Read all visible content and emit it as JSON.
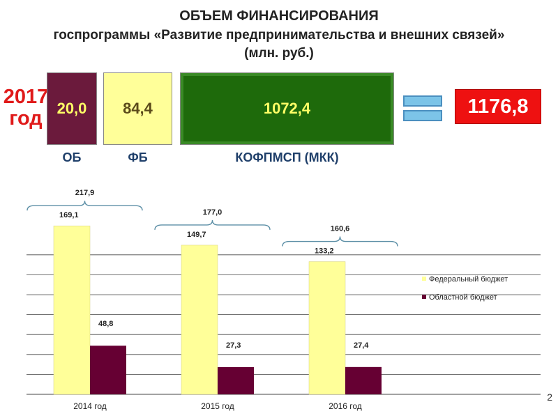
{
  "title": {
    "line1": "ОБЪЕМ ФИНАНСИРОВАНИЯ",
    "line2": "госпрограммы «Развитие предпринимательства и внешних связей»",
    "line3": "(млн. руб.)"
  },
  "summary": {
    "year_line1": "2017",
    "year_line2": "год",
    "ob": {
      "value": "20,0",
      "label": "ОБ"
    },
    "fb": {
      "value": "84,4",
      "label": "ФБ"
    },
    "kof": {
      "value": "1072,4",
      "label": "КОФПМСП (МКК)"
    },
    "total": "1176,8"
  },
  "colors": {
    "federal": "#ffff99",
    "regional": "#660033",
    "box_green": "#1e6a0b",
    "total_red": "#ee1111",
    "year_red": "#e01a1a"
  },
  "chart_data": {
    "type": "bar",
    "categories": [
      "2014 год",
      "2015 год",
      "2016 год"
    ],
    "series": [
      {
        "name": "Федеральный бюджет",
        "values": [
          169.1,
          149.7,
          133.2
        ],
        "labels": [
          "169,1",
          "149,7",
          "133,2"
        ]
      },
      {
        "name": "Областной бюджет",
        "values": [
          48.8,
          27.3,
          27.4
        ],
        "labels": [
          "48,8",
          "27,3",
          "27,4"
        ]
      }
    ],
    "totals": [
      217.9,
      177.0,
      160.6
    ],
    "total_labels": [
      "217,9",
      "177,0",
      "160,6"
    ],
    "ylim": [
      0,
      200
    ],
    "grid": true,
    "legend": "right"
  },
  "page_number": "2"
}
